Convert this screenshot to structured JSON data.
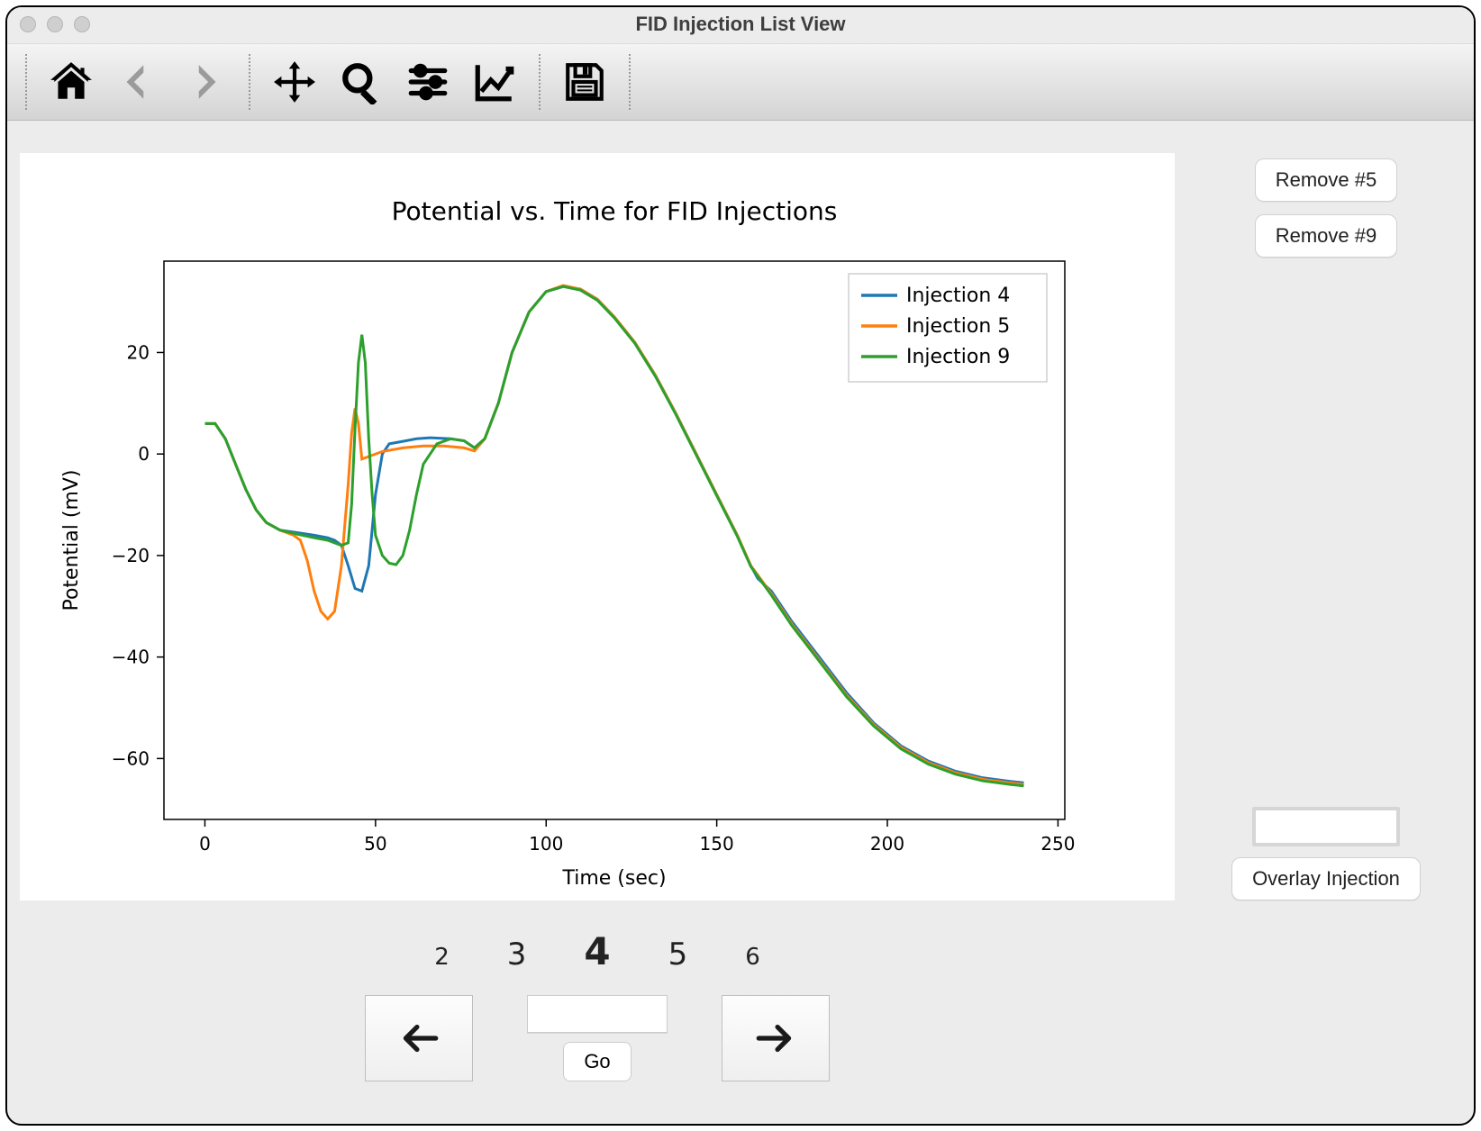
{
  "window": {
    "title": "FID Injection List View"
  },
  "toolbar": {
    "groups": [
      [
        "home",
        "back",
        "forward"
      ],
      [
        "pan",
        "zoom",
        "configure",
        "edit-axes"
      ],
      [
        "save"
      ]
    ],
    "inactive": [
      "back",
      "forward"
    ]
  },
  "sidebar": {
    "remove_buttons": [
      {
        "label": "Remove #5"
      },
      {
        "label": "Remove #9"
      }
    ],
    "overlay_input_value": "",
    "overlay_button": "Overlay Injection"
  },
  "pager": {
    "numbers": [
      {
        "value": "2",
        "cls": ""
      },
      {
        "value": "3",
        "cls": "near"
      },
      {
        "value": "4",
        "cls": "current"
      },
      {
        "value": "5",
        "cls": "near"
      },
      {
        "value": "6",
        "cls": ""
      }
    ],
    "go_label": "Go",
    "go_input_value": ""
  },
  "chart": {
    "type": "line",
    "title": "Potential vs. Time for FID Injections",
    "title_fontsize": 28,
    "xlabel": "Time (sec)",
    "ylabel": "Potential (mV)",
    "label_fontsize": 22,
    "tick_fontsize": 20,
    "background_color": "#ffffff",
    "axis_color": "#000000",
    "line_width": 3,
    "xlim": [
      -12,
      252
    ],
    "ylim": [
      -72,
      38
    ],
    "xticks": [
      0,
      50,
      100,
      150,
      200,
      250
    ],
    "yticks": [
      -60,
      -40,
      -20,
      0,
      20
    ],
    "legend": {
      "position": "upper-right",
      "entries": [
        "Injection 4",
        "Injection 5",
        "Injection 9"
      ]
    },
    "series": [
      {
        "name": "Injection 4",
        "color": "#1f77b4",
        "points": [
          [
            0,
            6
          ],
          [
            3,
            6
          ],
          [
            6,
            3
          ],
          [
            9,
            -2
          ],
          [
            12,
            -7
          ],
          [
            15,
            -11
          ],
          [
            18,
            -13.5
          ],
          [
            22,
            -15
          ],
          [
            27,
            -15.5
          ],
          [
            32,
            -16
          ],
          [
            36,
            -16.5
          ],
          [
            38,
            -17
          ],
          [
            40,
            -18
          ],
          [
            42,
            -22
          ],
          [
            44,
            -26.5
          ],
          [
            46,
            -27
          ],
          [
            48,
            -22
          ],
          [
            50,
            -8
          ],
          [
            52,
            0
          ],
          [
            54,
            2
          ],
          [
            58,
            2.5
          ],
          [
            62,
            3
          ],
          [
            66,
            3.2
          ],
          [
            72,
            3
          ],
          [
            76,
            2.6
          ],
          [
            79,
            1.2
          ],
          [
            82,
            3
          ],
          [
            86,
            10
          ],
          [
            90,
            20
          ],
          [
            95,
            28
          ],
          [
            100,
            32
          ],
          [
            105,
            33
          ],
          [
            110,
            32.5
          ],
          [
            115,
            30.5
          ],
          [
            120,
            27
          ],
          [
            126,
            22
          ],
          [
            132,
            15.5
          ],
          [
            138,
            8
          ],
          [
            144,
            0
          ],
          [
            150,
            -8
          ],
          [
            156,
            -16
          ],
          [
            158,
            -19
          ],
          [
            160,
            -22
          ],
          [
            162,
            -24.5
          ],
          [
            166,
            -27
          ],
          [
            172,
            -33
          ],
          [
            180,
            -40
          ],
          [
            188,
            -47
          ],
          [
            196,
            -53
          ],
          [
            204,
            -57.5
          ],
          [
            212,
            -60.5
          ],
          [
            220,
            -62.5
          ],
          [
            228,
            -63.8
          ],
          [
            236,
            -64.5
          ],
          [
            240,
            -64.8
          ]
        ]
      },
      {
        "name": "Injection 5",
        "color": "#ff7f0e",
        "points": [
          [
            0,
            6
          ],
          [
            3,
            6
          ],
          [
            6,
            3
          ],
          [
            9,
            -2
          ],
          [
            12,
            -7
          ],
          [
            15,
            -11
          ],
          [
            18,
            -13.5
          ],
          [
            22,
            -15
          ],
          [
            26,
            -16
          ],
          [
            28,
            -17
          ],
          [
            30,
            -21
          ],
          [
            32,
            -27
          ],
          [
            34,
            -31
          ],
          [
            36,
            -32.5
          ],
          [
            38,
            -31
          ],
          [
            40,
            -22
          ],
          [
            42,
            -6
          ],
          [
            43,
            4
          ],
          [
            44,
            9
          ],
          [
            45,
            6
          ],
          [
            46,
            -1
          ],
          [
            48,
            -0.5
          ],
          [
            52,
            0.5
          ],
          [
            58,
            1.2
          ],
          [
            64,
            1.6
          ],
          [
            70,
            1.6
          ],
          [
            76,
            1.2
          ],
          [
            79,
            0.6
          ],
          [
            82,
            3
          ],
          [
            86,
            10
          ],
          [
            90,
            20
          ],
          [
            95,
            28
          ],
          [
            100,
            32
          ],
          [
            105,
            33.2
          ],
          [
            110,
            32.5
          ],
          [
            115,
            30.5
          ],
          [
            120,
            27
          ],
          [
            126,
            22
          ],
          [
            132,
            15.5
          ],
          [
            138,
            8
          ],
          [
            144,
            0
          ],
          [
            150,
            -8
          ],
          [
            156,
            -16
          ],
          [
            160,
            -22
          ],
          [
            166,
            -27.5
          ],
          [
            172,
            -33.5
          ],
          [
            180,
            -40.5
          ],
          [
            188,
            -47.5
          ],
          [
            196,
            -53.3
          ],
          [
            204,
            -57.8
          ],
          [
            212,
            -60.8
          ],
          [
            220,
            -62.8
          ],
          [
            228,
            -64.1
          ],
          [
            236,
            -64.8
          ],
          [
            240,
            -65.1
          ]
        ]
      },
      {
        "name": "Injection 9",
        "color": "#2ca02c",
        "points": [
          [
            0,
            6
          ],
          [
            3,
            6
          ],
          [
            6,
            3
          ],
          [
            9,
            -2
          ],
          [
            12,
            -7
          ],
          [
            15,
            -11
          ],
          [
            18,
            -13.5
          ],
          [
            22,
            -15
          ],
          [
            27,
            -15.8
          ],
          [
            32,
            -16.5
          ],
          [
            36,
            -17
          ],
          [
            38,
            -17.5
          ],
          [
            40,
            -18
          ],
          [
            42,
            -17.5
          ],
          [
            43,
            -10
          ],
          [
            44,
            5
          ],
          [
            45,
            18
          ],
          [
            46,
            23.5
          ],
          [
            47,
            18
          ],
          [
            48,
            3
          ],
          [
            49,
            -8
          ],
          [
            50,
            -16
          ],
          [
            52,
            -20
          ],
          [
            54,
            -21.5
          ],
          [
            56,
            -21.8
          ],
          [
            58,
            -20
          ],
          [
            60,
            -15
          ],
          [
            62,
            -8
          ],
          [
            64,
            -2
          ],
          [
            68,
            2
          ],
          [
            72,
            3
          ],
          [
            76,
            2.6
          ],
          [
            79,
            1.2
          ],
          [
            82,
            3
          ],
          [
            86,
            10
          ],
          [
            90,
            20
          ],
          [
            95,
            28
          ],
          [
            100,
            32
          ],
          [
            105,
            33
          ],
          [
            110,
            32.3
          ],
          [
            115,
            30.3
          ],
          [
            120,
            26.8
          ],
          [
            126,
            21.8
          ],
          [
            132,
            15.3
          ],
          [
            138,
            7.8
          ],
          [
            144,
            -0.2
          ],
          [
            150,
            -8.2
          ],
          [
            156,
            -16.2
          ],
          [
            160,
            -22.2
          ],
          [
            166,
            -27.8
          ],
          [
            172,
            -33.8
          ],
          [
            180,
            -40.8
          ],
          [
            188,
            -47.8
          ],
          [
            196,
            -53.6
          ],
          [
            204,
            -58.1
          ],
          [
            212,
            -61.1
          ],
          [
            220,
            -63.1
          ],
          [
            228,
            -64.4
          ],
          [
            236,
            -65.1
          ],
          [
            240,
            -65.4
          ]
        ]
      }
    ]
  }
}
